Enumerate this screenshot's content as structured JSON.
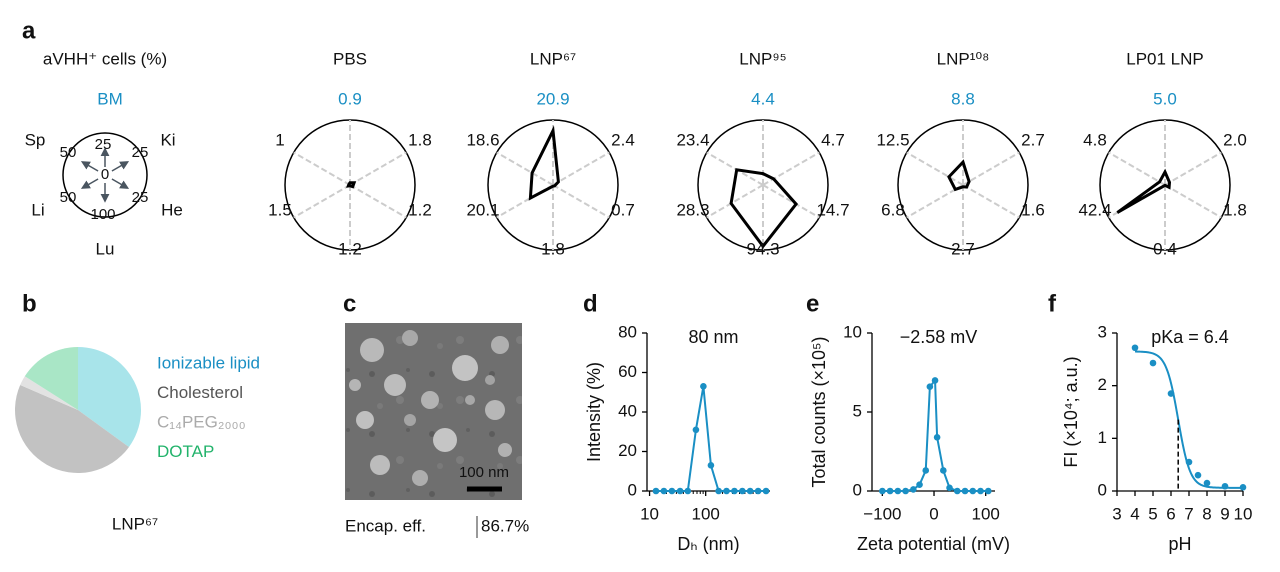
{
  "panel_labels": [
    "a",
    "b",
    "c",
    "d",
    "e",
    "f"
  ],
  "radar_key": {
    "title": "aVHH⁺ cells (%)",
    "center": 0,
    "accent": "#1a8fc4",
    "axes": [
      {
        "name": "BM",
        "max": 25
      },
      {
        "name": "Ki",
        "max": 25
      },
      {
        "name": "He",
        "max": 25
      },
      {
        "name": "Lu",
        "max": 100
      },
      {
        "name": "Li",
        "max": 50
      },
      {
        "name": "Sp",
        "max": 50
      }
    ]
  },
  "micrograph": {
    "scale_bar": "100 nm",
    "caption": "Encap. eff.",
    "efficiency": "86.7%"
  },
  "chart_data": [
    {
      "type": "radar",
      "title": "PBS",
      "color": "#000000",
      "values": [
        0.9,
        1.8,
        1.2,
        1.2,
        1.5,
        1.0
      ]
    },
    {
      "type": "radar",
      "title": "LNP⁶⁷",
      "color": "#000000",
      "values": [
        20.9,
        2.4,
        0.7,
        1.8,
        20.1,
        18.6
      ]
    },
    {
      "type": "radar",
      "title": "LNP⁹⁵",
      "color": "#000000",
      "values": [
        4.4,
        4.7,
        14.7,
        94.3,
        28.3,
        23.4
      ]
    },
    {
      "type": "radar",
      "title": "LNP¹⁰⁸",
      "color": "#000000",
      "values": [
        8.8,
        2.7,
        1.6,
        2.7,
        6.8,
        12.5
      ]
    },
    {
      "type": "radar",
      "title": "LP01 LNP",
      "color": "#000000",
      "values": [
        5.0,
        2.0,
        1.8,
        0.4,
        42.4,
        4.8
      ],
      "value_labels": [
        "5.0",
        "2.0",
        "1.8",
        "0.4",
        "42.4",
        "4.8"
      ]
    },
    {
      "type": "pie",
      "caption": "LNP⁶⁷",
      "categories": [
        "Ionizable lipid",
        "Cholesterol",
        "C₁₄PEG₂₀₀₀",
        "DOTAP"
      ],
      "values": [
        35,
        46.5,
        2.5,
        16
      ],
      "colors": [
        "#a8e4ea",
        "#c2c2c2",
        "#e2e2e2",
        "#a9e6c6"
      ],
      "label_colors": [
        "#1a8fc4",
        "#555555",
        "#aaaaaa",
        "#22b36b"
      ]
    },
    {
      "type": "line",
      "color": "#1a8fc4",
      "annotation": "80 nm",
      "xlabel": "Dₕ (nm)",
      "ylabel": "Intensity (%)",
      "xlog": true,
      "xlim": [
        9,
        1400
      ],
      "xticks": [
        10,
        100
      ],
      "ylim": [
        0,
        80
      ],
      "yticks": [
        0,
        20,
        40,
        60,
        80
      ],
      "x": [
        13,
        18,
        25,
        35,
        48,
        67,
        91,
        124,
        170,
        235,
        325,
        450,
        620,
        860,
        1190
      ],
      "values": [
        0,
        0,
        0,
        0,
        0,
        31,
        53,
        13,
        0,
        0,
        0,
        0,
        0,
        0,
        0
      ]
    },
    {
      "type": "line",
      "color": "#1a8fc4",
      "annotation": "−2.58 mV",
      "xlabel": "Zeta potential (mV)",
      "ylabel": "Total counts (×10⁵)",
      "xlim": [
        -120,
        118
      ],
      "xticks": [
        {
          "value": -100,
          "label": "−100"
        },
        0,
        100
      ],
      "ylim": [
        0,
        10
      ],
      "yticks": [
        0,
        5,
        10
      ],
      "x": [
        -100,
        -85,
        -70,
        -55,
        -40,
        -28,
        -16,
        -8,
        2,
        6,
        18,
        30,
        45,
        60,
        75,
        90,
        105
      ],
      "values": [
        0,
        0,
        0,
        0,
        0.1,
        0.4,
        1.3,
        6.6,
        7.0,
        3.4,
        1.3,
        0.2,
        0,
        0,
        0,
        0,
        0
      ]
    },
    {
      "type": "scatter",
      "color": "#1a8fc4",
      "annotation": "pKa = 6.4",
      "xlabel": "pH",
      "ylabel": "FI (×10⁴; a.u.)",
      "xlim": [
        3,
        10
      ],
      "xticks": [
        3,
        4,
        5,
        6,
        7,
        8,
        9,
        10
      ],
      "ylim": [
        0,
        3
      ],
      "yticks": [
        0,
        1,
        2,
        3
      ],
      "x": [
        4,
        5,
        6,
        7,
        7.5,
        8,
        9,
        10
      ],
      "values": [
        2.72,
        2.43,
        1.85,
        0.55,
        0.3,
        0.15,
        0.09,
        0.07
      ],
      "fit": {
        "top": 2.65,
        "bottom": 0.06,
        "pKa": 6.4,
        "hill": 1.3
      }
    }
  ]
}
